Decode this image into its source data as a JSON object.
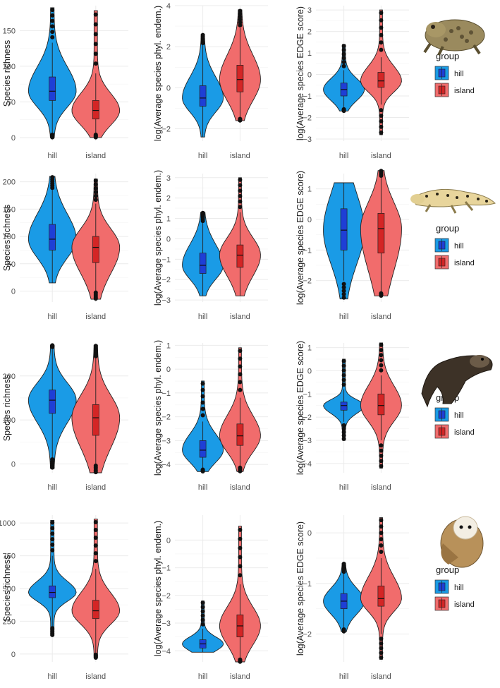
{
  "colors": {
    "hill": "#1a9be6",
    "island": "#f16c6c",
    "box_hill": "#1e3fd6",
    "box_island": "#d42525",
    "grid": "#ebebeb",
    "outline": "#222222"
  },
  "legend": {
    "title": "group",
    "entries": [
      "hill",
      "island"
    ]
  },
  "animals": [
    "toad-photo",
    "gecko-photo",
    "ferret-photo",
    "owl-photo"
  ],
  "chart_data": [
    {
      "type": "violin",
      "row": 1,
      "col": 1,
      "xlabel": "",
      "ylabel": "Species richness",
      "categories": [
        "hill",
        "island"
      ],
      "ylim": [
        -5,
        185
      ],
      "yticks": [
        0,
        50,
        100,
        150
      ],
      "series": [
        {
          "name": "hill",
          "min": 0,
          "max": 182,
          "q1": 52,
          "median": 65,
          "q3": 85,
          "whisker_low": 5,
          "whisker_high": 133
        },
        {
          "name": "island",
          "min": 0,
          "max": 178,
          "q1": 26,
          "median": 38,
          "q3": 52,
          "whisker_low": 5,
          "whisker_high": 90
        }
      ]
    },
    {
      "type": "violin",
      "row": 1,
      "col": 2,
      "xlabel": "",
      "ylabel": "log(Average species phyl. endem.)",
      "categories": [
        "hill",
        "island"
      ],
      "ylim": [
        -2.6,
        4
      ],
      "yticks": [
        -2,
        0,
        2,
        4
      ],
      "series": [
        {
          "name": "hill",
          "min": -2.4,
          "max": 2.6,
          "q1": -0.9,
          "median": -0.5,
          "q3": 0.1,
          "whisker_low": -2.4,
          "whisker_high": 2.1
        },
        {
          "name": "island",
          "min": -1.6,
          "max": 3.8,
          "q1": -0.2,
          "median": 0.4,
          "q3": 1.1,
          "whisker_low": -1.5,
          "whisker_high": 2.9
        }
      ]
    },
    {
      "type": "violin",
      "row": 1,
      "col": 3,
      "xlabel": "",
      "ylabel": "log(Average species EDGE score)",
      "categories": [
        "hill",
        "island"
      ],
      "ylim": [
        -3.1,
        3.2
      ],
      "yticks": [
        -3,
        -2,
        -1,
        0,
        1,
        2,
        3
      ],
      "series": [
        {
          "name": "hill",
          "min": -1.7,
          "max": 1.4,
          "q1": -1.0,
          "median": -0.7,
          "q3": -0.4,
          "whisker_low": -1.6,
          "whisker_high": 0.2
        },
        {
          "name": "island",
          "min": -2.8,
          "max": 3.0,
          "q1": -0.6,
          "median": -0.3,
          "q3": 0.1,
          "whisker_low": -1.4,
          "whisker_high": 0.8
        }
      ]
    },
    {
      "type": "violin",
      "row": 2,
      "col": 1,
      "xlabel": "",
      "ylabel": "Species richness",
      "categories": [
        "hill",
        "island"
      ],
      "ylim": [
        -20,
        215
      ],
      "yticks": [
        0,
        50,
        100,
        150,
        200
      ],
      "series": [
        {
          "name": "hill",
          "min": 15,
          "max": 210,
          "q1": 75,
          "median": 95,
          "q3": 122,
          "whisker_low": 15,
          "whisker_high": 185
        },
        {
          "name": "island",
          "min": -15,
          "max": 205,
          "q1": 52,
          "median": 80,
          "q3": 100,
          "whisker_low": 0,
          "whisker_high": 160
        }
      ]
    },
    {
      "type": "violin",
      "row": 2,
      "col": 2,
      "xlabel": "",
      "ylabel": "log(Average species phyl. endem.)",
      "categories": [
        "hill",
        "island"
      ],
      "ylim": [
        -3.1,
        3.2
      ],
      "yticks": [
        -3,
        -2,
        -1,
        0,
        1,
        2,
        3
      ],
      "series": [
        {
          "name": "hill",
          "min": -2.8,
          "max": 1.3,
          "q1": -1.7,
          "median": -1.3,
          "q3": -0.7,
          "whisker_low": -2.8,
          "whisker_high": 0.8
        },
        {
          "name": "island",
          "min": -2.8,
          "max": 3.0,
          "q1": -1.4,
          "median": -0.8,
          "q3": -0.3,
          "whisker_low": -2.8,
          "whisker_high": 1.3
        }
      ]
    },
    {
      "type": "violin",
      "row": 2,
      "col": 3,
      "xlabel": "",
      "ylabel": "log(Average species EDGE score)",
      "categories": [
        "hill",
        "island"
      ],
      "ylim": [
        -2.7,
        1.5
      ],
      "yticks": [
        -2,
        -1,
        0,
        1
      ],
      "series": [
        {
          "name": "hill",
          "min": -2.6,
          "max": 1.2,
          "q1": -1.0,
          "median": -0.35,
          "q3": 0.35,
          "whisker_low": -2.0,
          "whisker_high": 1.2
        },
        {
          "name": "island",
          "min": -2.5,
          "max": 1.6,
          "q1": -1.1,
          "median": -0.3,
          "q3": 0.2,
          "whisker_low": -2.4,
          "whisker_high": 1.4
        }
      ]
    },
    {
      "type": "violin",
      "row": 3,
      "col": 1,
      "xlabel": "",
      "ylabel": "Species richness",
      "categories": [
        "hill",
        "island"
      ],
      "ylim": [
        -20,
        275
      ],
      "yticks": [
        0,
        100,
        200
      ],
      "series": [
        {
          "name": "hill",
          "min": -10,
          "max": 270,
          "q1": 115,
          "median": 145,
          "q3": 168,
          "whisker_low": 15,
          "whisker_high": 265
        },
        {
          "name": "island",
          "min": -20,
          "max": 270,
          "q1": 65,
          "median": 105,
          "q3": 135,
          "whisker_low": 0,
          "whisker_high": 240
        }
      ]
    },
    {
      "type": "violin",
      "row": 3,
      "col": 2,
      "xlabel": "",
      "ylabel": "log(Average species phyl. endem.)",
      "categories": [
        "hill",
        "island"
      ],
      "ylim": [
        -4.35,
        1.1
      ],
      "yticks": [
        -4,
        -3,
        -2,
        -1,
        0,
        1
      ],
      "series": [
        {
          "name": "hill",
          "min": -4.3,
          "max": -0.5,
          "q1": -3.7,
          "median": -3.4,
          "q3": -3.0,
          "whisker_low": -4.2,
          "whisker_high": -2.2
        },
        {
          "name": "island",
          "min": -4.3,
          "max": 0.9,
          "q1": -3.2,
          "median": -2.8,
          "q3": -2.3,
          "whisker_low": -4.1,
          "whisker_high": -1.2
        }
      ]
    },
    {
      "type": "violin",
      "row": 3,
      "col": 3,
      "xlabel": "",
      "ylabel": "log(Average species EDGE score)",
      "categories": [
        "hill",
        "island"
      ],
      "ylim": [
        -4.4,
        1.2
      ],
      "yticks": [
        -4,
        -3,
        -2,
        -1,
        0,
        1
      ],
      "series": [
        {
          "name": "hill",
          "min": -3.0,
          "max": 0.5,
          "q1": -1.7,
          "median": -1.5,
          "q3": -1.35,
          "whisker_low": -2.2,
          "whisker_high": -0.8
        },
        {
          "name": "island",
          "min": -4.2,
          "max": 1.2,
          "q1": -1.9,
          "median": -1.5,
          "q3": -1.0,
          "whisker_low": -3.0,
          "whisker_high": -0.2
        }
      ]
    },
    {
      "type": "violin",
      "row": 4,
      "col": 1,
      "xlabel": "",
      "ylabel": "Species richness",
      "categories": [
        "hill",
        "island"
      ],
      "ylim": [
        -60,
        1060
      ],
      "yticks": [
        0,
        250,
        500,
        750,
        1000
      ],
      "series": [
        {
          "name": "hill",
          "min": 140,
          "max": 1020,
          "q1": 430,
          "median": 470,
          "q3": 520,
          "whisker_low": 210,
          "whisker_high": 750
        },
        {
          "name": "island",
          "min": -30,
          "max": 1030,
          "q1": 270,
          "median": 330,
          "q3": 410,
          "whisker_low": 0,
          "whisker_high": 650
        }
      ]
    },
    {
      "type": "violin",
      "row": 4,
      "col": 2,
      "xlabel": "",
      "ylabel": "log(Average species phyl. endem.)",
      "categories": [
        "hill",
        "island"
      ],
      "ylim": [
        -4.4,
        0.9
      ],
      "yticks": [
        -4,
        -3,
        -2,
        -1,
        0
      ],
      "series": [
        {
          "name": "hill",
          "min": -4.05,
          "max": -2.2,
          "q1": -3.9,
          "median": -3.75,
          "q3": -3.6,
          "whisker_low": -4.05,
          "whisker_high": -3.2
        },
        {
          "name": "island",
          "min": -4.4,
          "max": 0.5,
          "q1": -3.5,
          "median": -3.1,
          "q3": -2.7,
          "whisker_low": -4.3,
          "whisker_high": -1.6
        }
      ]
    },
    {
      "type": "violin",
      "row": 4,
      "col": 3,
      "xlabel": "",
      "ylabel": "log(Average species EDGE score)",
      "categories": [
        "hill",
        "island"
      ],
      "ylim": [
        -2.55,
        0.35
      ],
      "yticks": [
        -2,
        -1,
        0
      ],
      "series": [
        {
          "name": "hill",
          "min": -1.95,
          "max": -0.6,
          "q1": -1.5,
          "median": -1.35,
          "q3": -1.2,
          "whisker_low": -1.9,
          "whisker_high": -0.8
        },
        {
          "name": "island",
          "min": -2.5,
          "max": 0.3,
          "q1": -1.45,
          "median": -1.3,
          "q3": -1.05,
          "whisker_low": -2.0,
          "whisker_high": -0.5
        }
      ]
    }
  ]
}
